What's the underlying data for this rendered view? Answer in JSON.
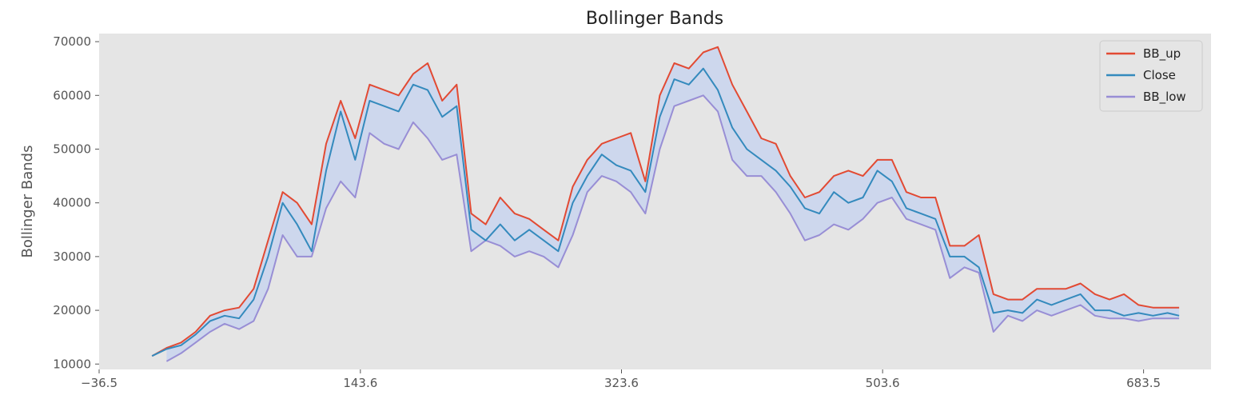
{
  "chart_data": {
    "type": "line",
    "title": "Bollinger Bands",
    "xlabel": "",
    "ylabel": "Bollinger Bands",
    "xlim": [
      -36.5,
      730
    ],
    "ylim": [
      9000,
      71500
    ],
    "x_ticks": [
      -36.5,
      143.6,
      323.6,
      503.6,
      683.5
    ],
    "x_tick_labels": [
      "−36.5",
      "143.6",
      "323.6",
      "503.6",
      "683.5"
    ],
    "y_ticks": [
      10000,
      20000,
      30000,
      40000,
      50000,
      60000,
      70000
    ],
    "grid": false,
    "legend_position": "top-right",
    "band_fill_color": "#c9d5ef",
    "background_color": "#e5e5e5",
    "x": [
      0,
      10,
      20,
      30,
      40,
      50,
      60,
      70,
      80,
      90,
      100,
      110,
      120,
      130,
      140,
      150,
      160,
      170,
      180,
      190,
      200,
      210,
      220,
      230,
      240,
      250,
      260,
      270,
      280,
      290,
      300,
      310,
      320,
      330,
      340,
      350,
      360,
      370,
      380,
      390,
      400,
      410,
      420,
      430,
      440,
      450,
      460,
      470,
      480,
      490,
      500,
      510,
      520,
      530,
      540,
      550,
      560,
      570,
      580,
      590,
      600,
      610,
      620,
      630,
      640,
      650,
      660,
      670,
      680,
      690,
      700,
      708
    ],
    "series": [
      {
        "name": "BB_up",
        "color": "#e24a33",
        "values": [
          11500,
          13000,
          14000,
          16000,
          19000,
          20000,
          20500,
          24000,
          33000,
          42000,
          40000,
          36000,
          51000,
          59000,
          52000,
          62000,
          61000,
          60000,
          64000,
          66000,
          59000,
          62000,
          38000,
          36000,
          41000,
          38000,
          37000,
          35000,
          33000,
          43000,
          48000,
          51000,
          52000,
          53000,
          44000,
          60000,
          66000,
          65000,
          68000,
          69000,
          62000,
          57000,
          52000,
          51000,
          45000,
          41000,
          42000,
          45000,
          46000,
          45000,
          48000,
          48000,
          42000,
          41000,
          41000,
          32000,
          32000,
          34000,
          23000,
          22000,
          22000,
          24000,
          24000,
          24000,
          25000,
          23000,
          22000,
          23000,
          21000,
          20500,
          20500,
          20500
        ]
      },
      {
        "name": "Close",
        "color": "#348abd",
        "values": [
          11500,
          12800,
          13500,
          15500,
          18000,
          19000,
          18500,
          22000,
          30000,
          40000,
          36000,
          31000,
          46000,
          57000,
          48000,
          59000,
          58000,
          57000,
          62000,
          61000,
          56000,
          58000,
          35000,
          33000,
          36000,
          33000,
          35000,
          33000,
          31000,
          40000,
          45000,
          49000,
          47000,
          46000,
          42000,
          56000,
          63000,
          62000,
          65000,
          61000,
          54000,
          50000,
          48000,
          46000,
          43000,
          39000,
          38000,
          42000,
          40000,
          41000,
          46000,
          44000,
          39000,
          38000,
          37000,
          30000,
          30000,
          28000,
          19500,
          20000,
          19500,
          22000,
          21000,
          22000,
          23000,
          20000,
          20000,
          19000,
          19500,
          19000,
          19500,
          19000
        ]
      },
      {
        "name": "BB_low",
        "color": "#988ed5",
        "values": [
          null,
          10500,
          12000,
          14000,
          16000,
          17500,
          16500,
          18000,
          24000,
          34000,
          30000,
          30000,
          39000,
          44000,
          41000,
          53000,
          51000,
          50000,
          55000,
          52000,
          48000,
          49000,
          31000,
          33000,
          32000,
          30000,
          31000,
          30000,
          28000,
          34000,
          42000,
          45000,
          44000,
          42000,
          38000,
          50000,
          58000,
          59000,
          60000,
          57000,
          48000,
          45000,
          45000,
          42000,
          38000,
          33000,
          34000,
          36000,
          35000,
          37000,
          40000,
          41000,
          37000,
          36000,
          35000,
          26000,
          28000,
          27000,
          16000,
          19000,
          18000,
          20000,
          19000,
          20000,
          21000,
          19000,
          18500,
          18500,
          18000,
          18500,
          18500,
          18500
        ]
      }
    ]
  }
}
